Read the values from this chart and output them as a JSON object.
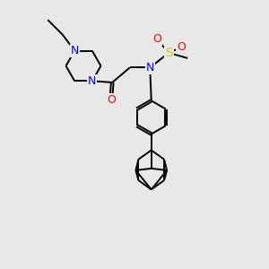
{
  "background_color": "#e8e8e8",
  "bond_color": "#000000",
  "N_color": "#0000ff",
  "O_color": "#ff0000",
  "S_color": "#cccc00",
  "figsize": [
    3.0,
    3.0
  ],
  "dpi": 100,
  "xlim": [
    0,
    10
  ],
  "ylim": [
    0,
    10
  ]
}
